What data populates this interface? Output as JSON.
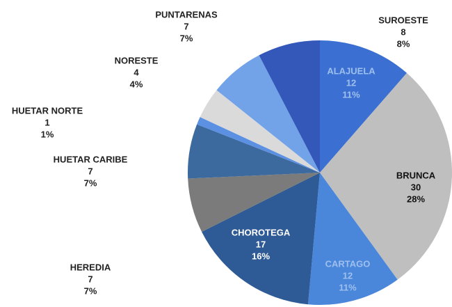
{
  "chart_data": {
    "type": "pie",
    "categories": [
      "ALAJUELA",
      "BRUNCA",
      "CARTAGO",
      "CHOROTEGA",
      "HEREDIA",
      "HUETAR CARIBE",
      "HUETAR NORTE",
      "NORESTE",
      "PUNTARENAS",
      "SUROESTE"
    ],
    "values": [
      12,
      30,
      12,
      17,
      7,
      7,
      1,
      4,
      7,
      8
    ],
    "percent_labels": [
      "11%",
      "28%",
      "11%",
      "16%",
      "7%",
      "7%",
      "1%",
      "4%",
      "7%",
      "8%"
    ],
    "colors": [
      "#3b70d2",
      "#bfbfbf",
      "#4a86da",
      "#2e5a96",
      "#7b7b7b",
      "#3d6a9e",
      "#5c90e2",
      "#dadada",
      "#72a3e8",
      "#3458ba"
    ]
  }
}
